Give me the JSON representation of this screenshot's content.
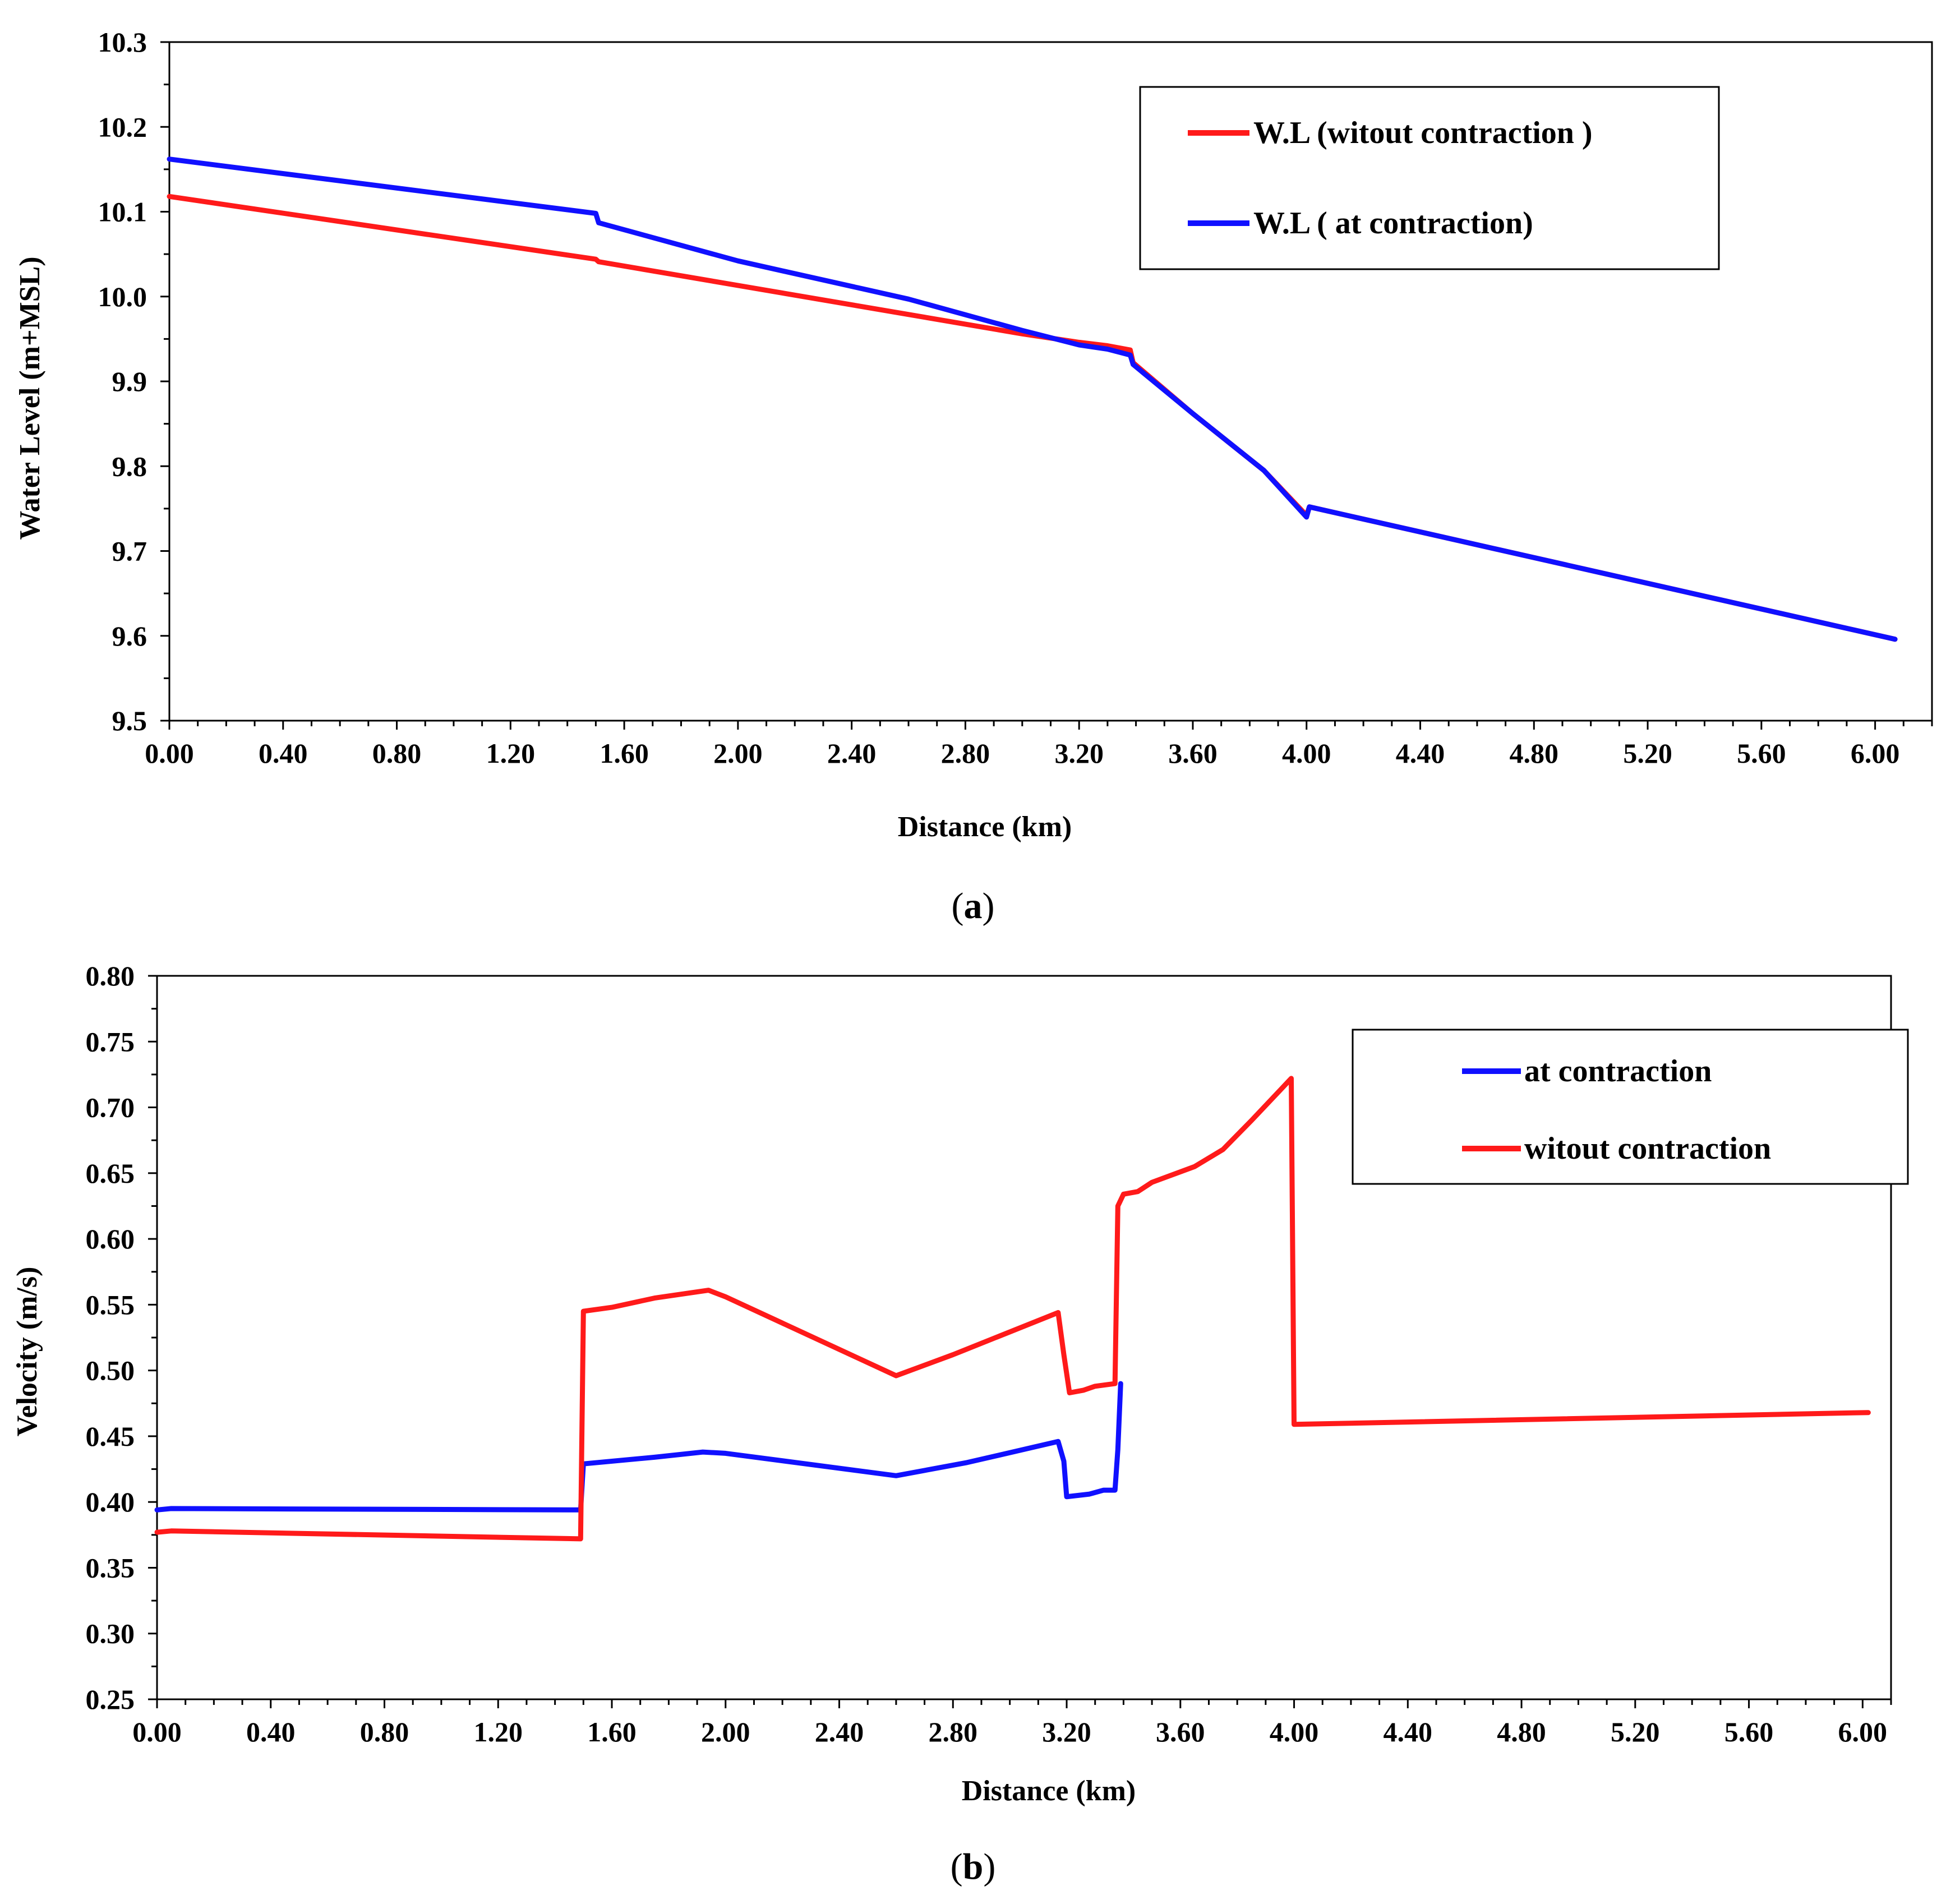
{
  "chart_data": [
    {
      "id": "a",
      "type": "line",
      "caption_letter": "a",
      "xlabel": "Distance (km)",
      "ylabel": "Water Level (m+MSL)",
      "xlim": [
        0.0,
        6.2
      ],
      "ylim": [
        9.5,
        10.3
      ],
      "x_ticks": [
        "0.00",
        "0.40",
        "0.80",
        "1.20",
        "1.60",
        "2.00",
        "2.40",
        "2.80",
        "3.20",
        "3.60",
        "4.00",
        "4.40",
        "4.80",
        "5.20",
        "5.60",
        "6.00"
      ],
      "y_ticks": [
        "9.5",
        "9.6",
        "9.7",
        "9.8",
        "9.9",
        "10.0",
        "10.1",
        "10.2",
        "10.3"
      ],
      "legend_position": "top-right",
      "series": [
        {
          "name": "W.L (witout contraction )",
          "color": "#ff1a1a",
          "x": [
            0.0,
            1.5,
            1.51,
            3.0,
            3.2,
            3.3,
            3.38,
            3.39,
            3.6,
            3.85,
            4.0,
            4.01,
            6.07
          ],
          "y": [
            10.118,
            10.044,
            10.041,
            9.956,
            9.946,
            9.942,
            9.937,
            9.922,
            9.862,
            9.795,
            9.742,
            9.752,
            9.596
          ]
        },
        {
          "name": "W.L ( at contraction)",
          "color": "#1010ff",
          "x": [
            0.0,
            1.5,
            1.51,
            2.0,
            2.6,
            3.0,
            3.2,
            3.3,
            3.38,
            3.39,
            3.6,
            3.85,
            4.0,
            4.01,
            6.07
          ],
          "y": [
            10.162,
            10.098,
            10.087,
            10.042,
            9.997,
            9.96,
            9.943,
            9.938,
            9.931,
            9.92,
            9.862,
            9.795,
            9.74,
            9.752,
            9.596
          ]
        }
      ]
    },
    {
      "id": "b",
      "type": "line",
      "caption_letter": "b",
      "xlabel": "Distance (km)",
      "ylabel": "Velocity (m/s)",
      "xlim": [
        0.0,
        6.1
      ],
      "ylim": [
        0.25,
        0.8
      ],
      "x_ticks": [
        "0.00",
        "0.40",
        "0.80",
        "1.20",
        "1.60",
        "2.00",
        "2.40",
        "2.80",
        "3.20",
        "3.60",
        "4.00",
        "4.40",
        "4.80",
        "5.20",
        "5.60",
        "6.00"
      ],
      "y_ticks": [
        "0.25",
        "0.30",
        "0.35",
        "0.40",
        "0.45",
        "0.50",
        "0.55",
        "0.60",
        "0.65",
        "0.70",
        "0.75",
        "0.80"
      ],
      "legend_position": "top-right",
      "series": [
        {
          "name": "at contraction",
          "color": "#1010ff",
          "x": [
            0.0,
            0.05,
            1.49,
            1.5,
            1.75,
            1.92,
            2.0,
            2.6,
            2.85,
            3.17,
            3.19,
            3.2,
            3.28,
            3.33,
            3.37,
            3.38,
            3.39
          ],
          "y": [
            0.394,
            0.395,
            0.394,
            0.429,
            0.434,
            0.438,
            0.437,
            0.42,
            0.43,
            0.446,
            0.431,
            0.404,
            0.406,
            0.409,
            0.409,
            0.44,
            0.49
          ]
        },
        {
          "name": "witout contraction",
          "color": "#ff1a1a",
          "x": [
            0.0,
            0.05,
            1.49,
            1.5,
            1.6,
            1.75,
            1.94,
            2.0,
            2.6,
            2.8,
            3.17,
            3.19,
            3.21,
            3.26,
            3.3,
            3.37,
            3.38,
            3.4,
            3.45,
            3.5,
            3.65,
            3.75,
            3.85,
            3.99,
            4.0,
            6.02
          ],
          "y": [
            0.377,
            0.378,
            0.372,
            0.545,
            0.548,
            0.555,
            0.561,
            0.556,
            0.496,
            0.512,
            0.544,
            0.512,
            0.483,
            0.485,
            0.488,
            0.49,
            0.625,
            0.634,
            0.636,
            0.643,
            0.655,
            0.668,
            0.69,
            0.722,
            0.459,
            0.468
          ]
        }
      ]
    }
  ]
}
